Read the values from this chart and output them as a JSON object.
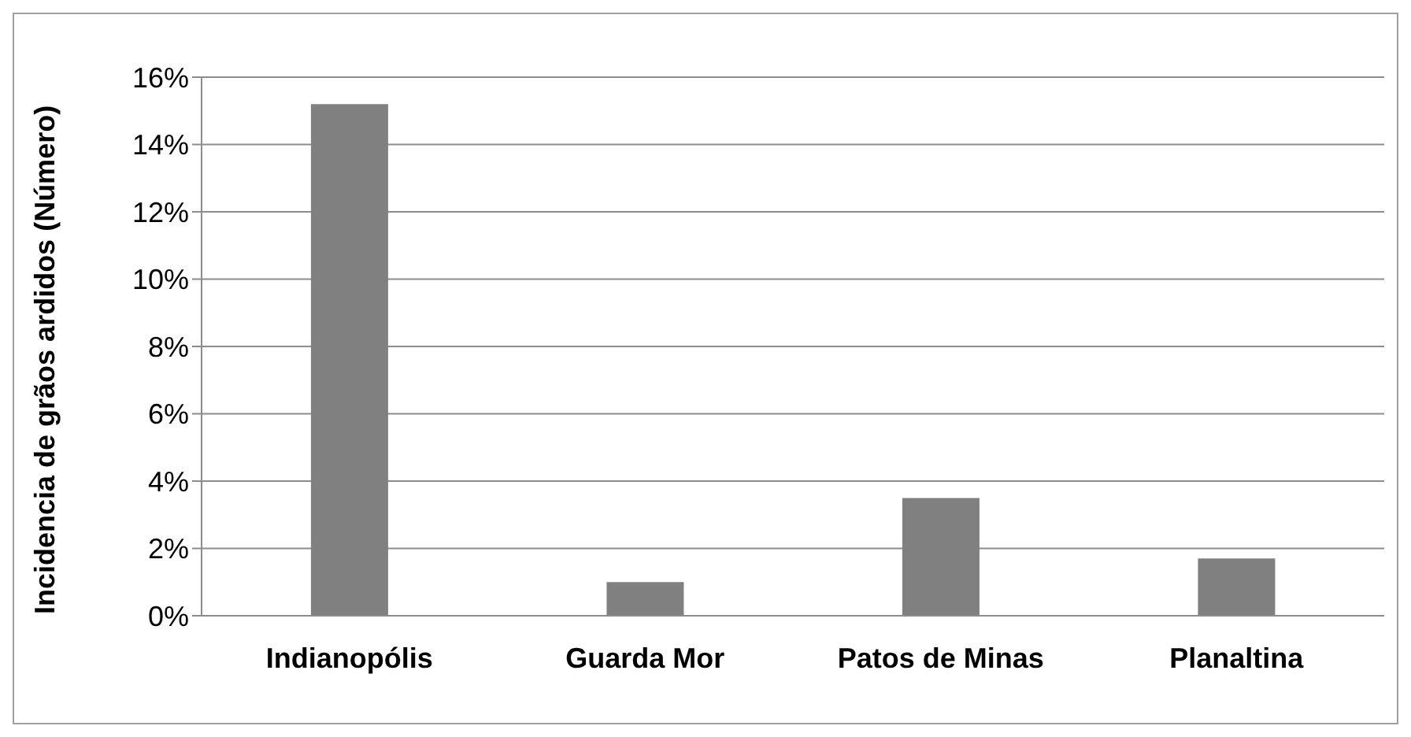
{
  "chart_data": {
    "type": "bar",
    "ylabel": "Incidencia de grãos ardidos (Número)",
    "categories": [
      "Indianopólis",
      "Guarda Mor",
      "Patos de Minas",
      "Planaltina"
    ],
    "values": [
      15.2,
      1.0,
      3.5,
      1.7
    ],
    "color": "#808080",
    "ylim": [
      0,
      16
    ],
    "yticks": [
      {
        "value": 0,
        "label": "0%"
      },
      {
        "value": 2,
        "label": "2%"
      },
      {
        "value": 4,
        "label": "4%"
      },
      {
        "value": 6,
        "label": "6%"
      },
      {
        "value": 8,
        "label": "8%"
      },
      {
        "value": 10,
        "label": "10%"
      },
      {
        "value": 12,
        "label": "12%"
      },
      {
        "value": 14,
        "label": "14%"
      },
      {
        "value": 16,
        "label": "16%"
      }
    ],
    "grid": "y"
  }
}
